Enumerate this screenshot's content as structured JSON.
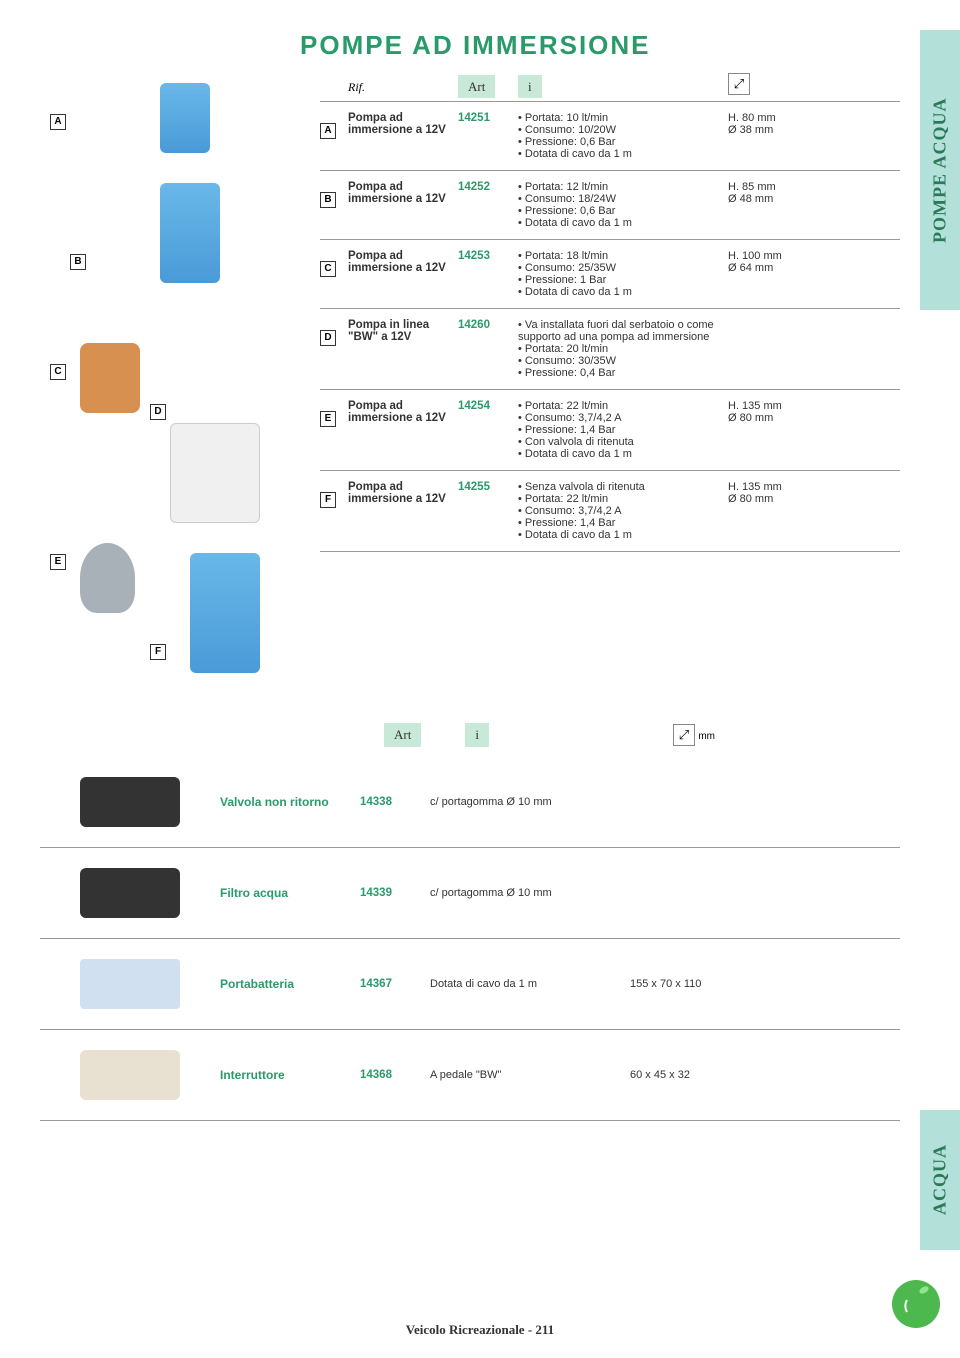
{
  "sideTabs": {
    "top": "POMPE ACQUA",
    "bottom": "ACQUA"
  },
  "title": "POMPE AD IMMERSIONE",
  "headers": {
    "rif": "Rif.",
    "art": "Art",
    "info": "i",
    "mm": "mm"
  },
  "section1": {
    "rows": [
      {
        "ref": "A",
        "name": "Pompa ad immersione a 12V",
        "art": "14251",
        "info": [
          "Portata: 10 lt/min",
          "Consumo: 10/20W",
          "Pressione: 0,6 Bar",
          "Dotata di cavo da 1 m"
        ],
        "dim": "H. 80 mm\nØ 38 mm"
      },
      {
        "ref": "B",
        "name": "Pompa ad immersione a 12V",
        "art": "14252",
        "info": [
          "Portata: 12 lt/min",
          "Consumo: 18/24W",
          "Pressione: 0,6 Bar",
          "Dotata di cavo da 1 m"
        ],
        "dim": "H. 85 mm\nØ 48 mm"
      },
      {
        "ref": "C",
        "name": "Pompa ad immersione a 12V",
        "art": "14253",
        "info": [
          "Portata: 18 lt/min",
          "Consumo: 25/35W",
          "Pressione: 1 Bar",
          "Dotata di cavo da 1 m"
        ],
        "dim": "H. 100 mm\nØ 64 mm"
      },
      {
        "ref": "D",
        "name": "Pompa in linea \"BW\" a 12V",
        "art": "14260",
        "info": [
          "Va installata fuori dal serbatoio o come supporto ad una pompa ad immersione",
          "Portata: 20 lt/min",
          "Consumo: 30/35W",
          "Pressione: 0,4 Bar"
        ],
        "dim": ""
      },
      {
        "ref": "E",
        "name": "Pompa ad immersione a 12V",
        "art": "14254",
        "info": [
          "Portata: 22 lt/min",
          "Consumo: 3,7/4,2 A",
          "Pressione: 1,4 Bar",
          "Con valvola di ritenuta",
          "Dotata di cavo da 1 m"
        ],
        "dim": "H. 135 mm\nØ 80 mm"
      },
      {
        "ref": "F",
        "name": "Pompa ad immersione a 12V",
        "art": "14255",
        "info": [
          "Senza valvola di ritenuta",
          "Portata: 22 lt/min",
          "Consumo: 3,7/4,2 A",
          "Pressione: 1,4 Bar",
          "Dotata di cavo da 1 m"
        ],
        "dim": "H. 135 mm\nØ 80 mm"
      }
    ]
  },
  "section2": {
    "rows": [
      {
        "name": "Valvola non ritorno",
        "art": "14338",
        "info": "c/ portagomma Ø 10 mm",
        "dim": ""
      },
      {
        "name": "Filtro acqua",
        "art": "14339",
        "info": "c/ portagomma Ø 10 mm",
        "dim": ""
      },
      {
        "name": "Portabatteria",
        "art": "14367",
        "info": "Dotata di cavo  da 1 m",
        "dim": "155 x 70 x 110"
      },
      {
        "name": "Interruttore",
        "art": "14368",
        "info": "A pedale \"BW\"",
        "dim": "60 x 45 x 32"
      }
    ]
  },
  "footer": {
    "text": "Veicolo Ricreazionale  -  211"
  },
  "imageLabels": {
    "A": "A",
    "B": "B",
    "C": "C",
    "D": "D",
    "E": "E",
    "F": "F"
  },
  "colors": {
    "accent": "#2a9a6a",
    "tabBg": "#b3e0d9",
    "headerBg": "#c8e8d8"
  }
}
